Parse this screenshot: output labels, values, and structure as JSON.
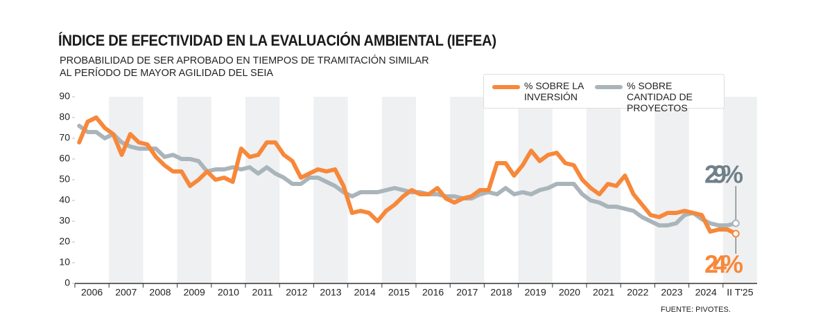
{
  "chart_data": {
    "type": "line",
    "title": "ÍNDICE DE EFECTIVIDAD EN LA EVALUACIÓN AMBIENTAL (IEFEA)",
    "subtitle": [
      "PROBABILIDAD DE SER APROBADO EN TIEMPOS DE TRAMITACIÓN SIMILAR",
      "AL PERÍODO DE MAYOR AGILIDAD DEL SEIA"
    ],
    "source": "FUENTE: PIVOTES.",
    "year_labels": [
      "2006",
      "2007",
      "2008",
      "2009",
      "2010",
      "2011",
      "2012",
      "2013",
      "2014",
      "2015",
      "2016",
      "2017",
      "2018",
      "2019",
      "2020",
      "2021",
      "2022",
      "2023",
      "2024",
      "II T'25"
    ],
    "ylim": [
      0,
      90
    ],
    "yticks": [
      0,
      10,
      20,
      30,
      40,
      50,
      60,
      70,
      80,
      90
    ],
    "series": [
      {
        "name": "% SOBRE LA INVERSIÓN",
        "color": "#f7883a",
        "end_label": "24%",
        "values": [
          68,
          78,
          80,
          75,
          72,
          62,
          72,
          68,
          67,
          61,
          57,
          54,
          54,
          47,
          50,
          54,
          50,
          51,
          49,
          65,
          61,
          62,
          68,
          68,
          62,
          59,
          51,
          53,
          55,
          54,
          55,
          47,
          34,
          35,
          34,
          30,
          35,
          38,
          42,
          45,
          43,
          43,
          46,
          41,
          39,
          41,
          42,
          45,
          45,
          58,
          58,
          52,
          57,
          64,
          59,
          62,
          63,
          58,
          57,
          50,
          46,
          43,
          48,
          47,
          52,
          43,
          38,
          33,
          32,
          34,
          34,
          35,
          34,
          33,
          25,
          26,
          26,
          24
        ]
      },
      {
        "name": "% SOBRE CANTIDAD DE PROYECTOS",
        "color": "#a9b5bb",
        "end_label": "29%",
        "values": [
          76,
          73,
          73,
          70,
          72,
          68,
          66,
          65,
          65,
          65,
          61,
          62,
          60,
          60,
          59,
          54,
          55,
          55,
          56,
          55,
          56,
          53,
          56,
          53,
          51,
          48,
          48,
          51,
          51,
          49,
          47,
          44,
          42,
          44,
          44,
          44,
          45,
          46,
          45,
          44,
          44,
          43,
          43,
          42,
          42,
          41,
          41,
          43,
          44,
          43,
          46,
          43,
          44,
          43,
          45,
          46,
          48,
          48,
          48,
          43,
          40,
          39,
          37,
          37,
          36,
          35,
          32,
          30,
          28,
          28,
          29,
          33,
          34,
          31,
          29,
          28,
          28,
          29
        ]
      }
    ]
  }
}
